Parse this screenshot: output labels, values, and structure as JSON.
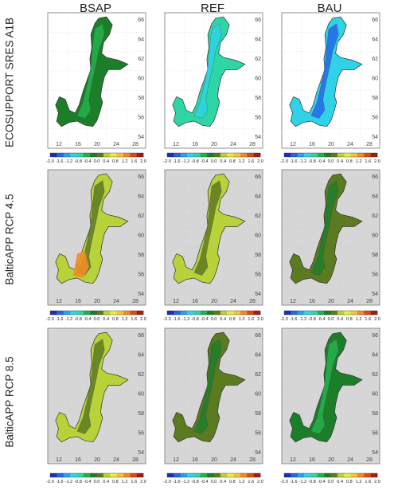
{
  "column_titles": [
    "BSAP",
    "REF",
    "BAU"
  ],
  "row_labels": [
    "ECOSUPPORT SRES  A1B",
    "BalticAPP RCP 4.5",
    "BalticAPP RCP 8.5"
  ],
  "lon_ticks": [
    "12",
    "16",
    "20",
    "24",
    "28"
  ],
  "lat_ticks": [
    "54",
    "56",
    "58",
    "60",
    "62",
    "64",
    "66"
  ],
  "colorbar": {
    "ticks": [
      "-2.0",
      "-1.6",
      "-1.2",
      "-0.8",
      "-0.4",
      "0.0",
      "0.4",
      "0.8",
      "1.2",
      "1.6",
      "2.0"
    ],
    "min": -2.0,
    "max": 2.0,
    "colors": [
      "#1c2fb5",
      "#2467e6",
      "#27a3ee",
      "#30d2e8",
      "#2dd6a4",
      "#24b04e",
      "#1d7e2a",
      "#5c7a20",
      "#b8d23a",
      "#ecec3c",
      "#f3c437",
      "#ef8d24",
      "#dd4a1a",
      "#a41b12"
    ]
  },
  "panel_values": [
    [
      -0.2,
      -0.75,
      -1.1
    ],
    [
      0.5,
      0.35,
      0.1
    ],
    [
      0.45,
      0.02,
      -0.05
    ]
  ],
  "panel_backgrounds": [
    "#ffffff",
    "#d6d6d6",
    "#d6d6d6"
  ]
}
